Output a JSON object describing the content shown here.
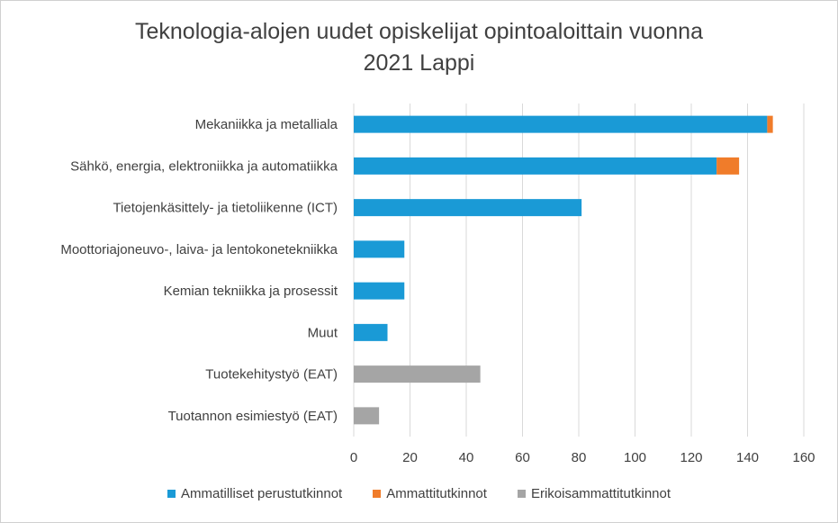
{
  "chart_data": {
    "type": "bar",
    "orientation": "horizontal",
    "stacked": true,
    "title_line1": "Teknologia-alojen uudet opiskelijat opintoaloittain vuonna",
    "title_line2": "2021 Lappi",
    "categories": [
      "Mekaniikka ja metalliala",
      "Sähkö, energia, elektroniikka ja automatiikka",
      "Tietojenkäsittely- ja tietoliikenne (ICT)",
      "Moottoriajoneuvo-, laiva- ja lentokonetekniikka",
      "Kemian tekniikka ja prosessit",
      "Muut",
      "Tuotekehitystyö (EAT)",
      "Tuotannon esimiestyö (EAT)"
    ],
    "series": [
      {
        "name": "Ammatilliset perustutkinnot",
        "color": "#1a9ad6",
        "values": [
          147,
          129,
          81,
          18,
          18,
          12,
          0,
          0
        ]
      },
      {
        "name": "Ammattitutkinnot",
        "color": "#f07c2a",
        "values": [
          2,
          8,
          0,
          0,
          0,
          0,
          0,
          0
        ]
      },
      {
        "name": "Erikoisammattitutkinnot",
        "color": "#a5a5a5",
        "values": [
          0,
          0,
          0,
          0,
          0,
          0,
          45,
          9
        ]
      }
    ],
    "xlim": [
      0,
      160
    ],
    "x_ticks": [
      "0",
      "20",
      "40",
      "60",
      "80",
      "100",
      "120",
      "140",
      "160"
    ],
    "grid": true,
    "legend_position": "bottom"
  }
}
